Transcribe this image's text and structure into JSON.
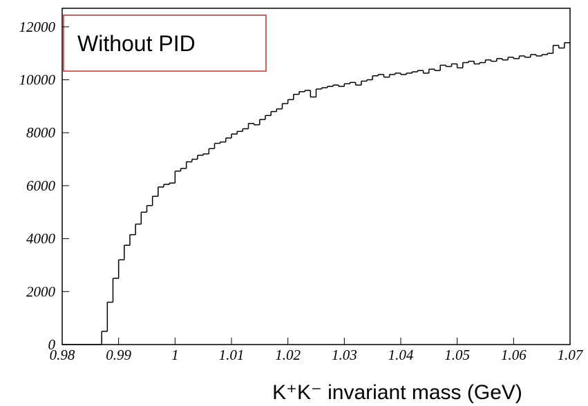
{
  "chart_data": {
    "type": "histogram",
    "annotation": "Without PID",
    "xlabel": "K⁺K⁻ invariant mass (GeV)",
    "bins": [
      0.98,
      0.981,
      0.982,
      0.983,
      0.984,
      0.985,
      0.986,
      0.987,
      0.988,
      0.989,
      0.99,
      0.991,
      0.992,
      0.993,
      0.994,
      0.995,
      0.996,
      0.997,
      0.998,
      0.999,
      1.0,
      1.001,
      1.002,
      1.003,
      1.004,
      1.005,
      1.006,
      1.007,
      1.008,
      1.009,
      1.01,
      1.011,
      1.012,
      1.013,
      1.014,
      1.015,
      1.016,
      1.017,
      1.018,
      1.019,
      1.02,
      1.021,
      1.022,
      1.023,
      1.024,
      1.025,
      1.026,
      1.027,
      1.028,
      1.029,
      1.03,
      1.031,
      1.032,
      1.033,
      1.034,
      1.035,
      1.036,
      1.037,
      1.038,
      1.039,
      1.04,
      1.041,
      1.042,
      1.043,
      1.044,
      1.045,
      1.046,
      1.047,
      1.048,
      1.049,
      1.05,
      1.051,
      1.052,
      1.053,
      1.054,
      1.055,
      1.056,
      1.057,
      1.058,
      1.059,
      1.06,
      1.061,
      1.062,
      1.063,
      1.064,
      1.065,
      1.066,
      1.067,
      1.068,
      1.069,
      1.07
    ],
    "values": [
      0,
      0,
      0,
      0,
      0,
      0,
      0,
      500,
      1600,
      2500,
      3200,
      3750,
      4150,
      4550,
      5000,
      5250,
      5600,
      5950,
      6050,
      6100,
      6550,
      6650,
      6900,
      7000,
      7150,
      7200,
      7400,
      7600,
      7650,
      7800,
      7950,
      8050,
      8150,
      8350,
      8300,
      8500,
      8650,
      8800,
      8900,
      9100,
      9250,
      9450,
      9550,
      9600,
      9350,
      9650,
      9700,
      9750,
      9800,
      9750,
      9850,
      9900,
      9800,
      9950,
      10000,
      10150,
      10200,
      10100,
      10200,
      10250,
      10200,
      10250,
      10300,
      10350,
      10250,
      10400,
      10350,
      10550,
      10500,
      10600,
      10450,
      10650,
      10700,
      10600,
      10650,
      10750,
      10700,
      10800,
      10750,
      10850,
      10800,
      10900,
      10850,
      10950,
      10900,
      10950,
      11000,
      11300,
      11200,
      11400
    ],
    "color": "#000000",
    "annotation_color": "#cc2a2a",
    "xlim": [
      0.98,
      1.07
    ],
    "ylim": [
      0,
      12700
    ],
    "xticks": [
      0.98,
      0.99,
      1,
      1.01,
      1.02,
      1.03,
      1.04,
      1.05,
      1.06,
      1.07
    ],
    "yticks": [
      0,
      2000,
      4000,
      6000,
      8000,
      10000,
      12000
    ]
  }
}
